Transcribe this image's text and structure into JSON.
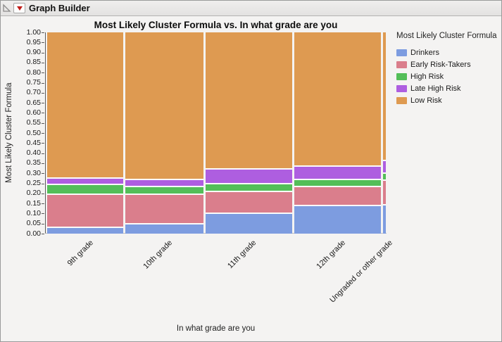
{
  "window": {
    "title": "Graph Builder"
  },
  "icons": {
    "disclosure": "collapse-disclosure-triangle",
    "menu": "red-triangle-menu"
  },
  "chart_data": {
    "type": "mosaic",
    "title": "Most Likely Cluster Formula vs. In what grade are you",
    "xlabel": "In what grade are you",
    "ylabel": "Most Likely Cluster Formula",
    "legend_title": "Most Likely Cluster Formula",
    "legend_position": "right",
    "ylim": [
      0,
      1
    ],
    "yticks": [
      "0.00",
      "0.05",
      "0.10",
      "0.15",
      "0.20",
      "0.25",
      "0.30",
      "0.35",
      "0.40",
      "0.45",
      "0.50",
      "0.55",
      "0.60",
      "0.65",
      "0.70",
      "0.75",
      "0.80",
      "0.85",
      "0.90",
      "0.95",
      "1.00"
    ],
    "series": [
      {
        "name": "Drinkers",
        "color": "#7d9ce0"
      },
      {
        "name": "Early Risk-Takers",
        "color": "#da7e8c"
      },
      {
        "name": "High Risk",
        "color": "#53be58"
      },
      {
        "name": "Late High Risk",
        "color": "#ae5ee0"
      },
      {
        "name": "Low Risk",
        "color": "#de9a51"
      }
    ],
    "categories": [
      {
        "label": "9th grade",
        "width_frac": 0.231,
        "proportions": [
          0.03,
          0.165,
          0.05,
          0.03,
          0.725
        ]
      },
      {
        "label": "10th grade",
        "width_frac": 0.235,
        "proportions": [
          0.05,
          0.145,
          0.04,
          0.035,
          0.73
        ]
      },
      {
        "label": "11th grade",
        "width_frac": 0.263,
        "proportions": [
          0.1,
          0.11,
          0.04,
          0.07,
          0.68
        ]
      },
      {
        "label": "12th grade",
        "width_frac": 0.263,
        "proportions": [
          0.14,
          0.095,
          0.035,
          0.065,
          0.665
        ]
      },
      {
        "label": "Ungraded or other grade",
        "width_frac": 0.008,
        "proportions": [
          0.145,
          0.12,
          0.035,
          0.065,
          0.635
        ]
      }
    ]
  }
}
